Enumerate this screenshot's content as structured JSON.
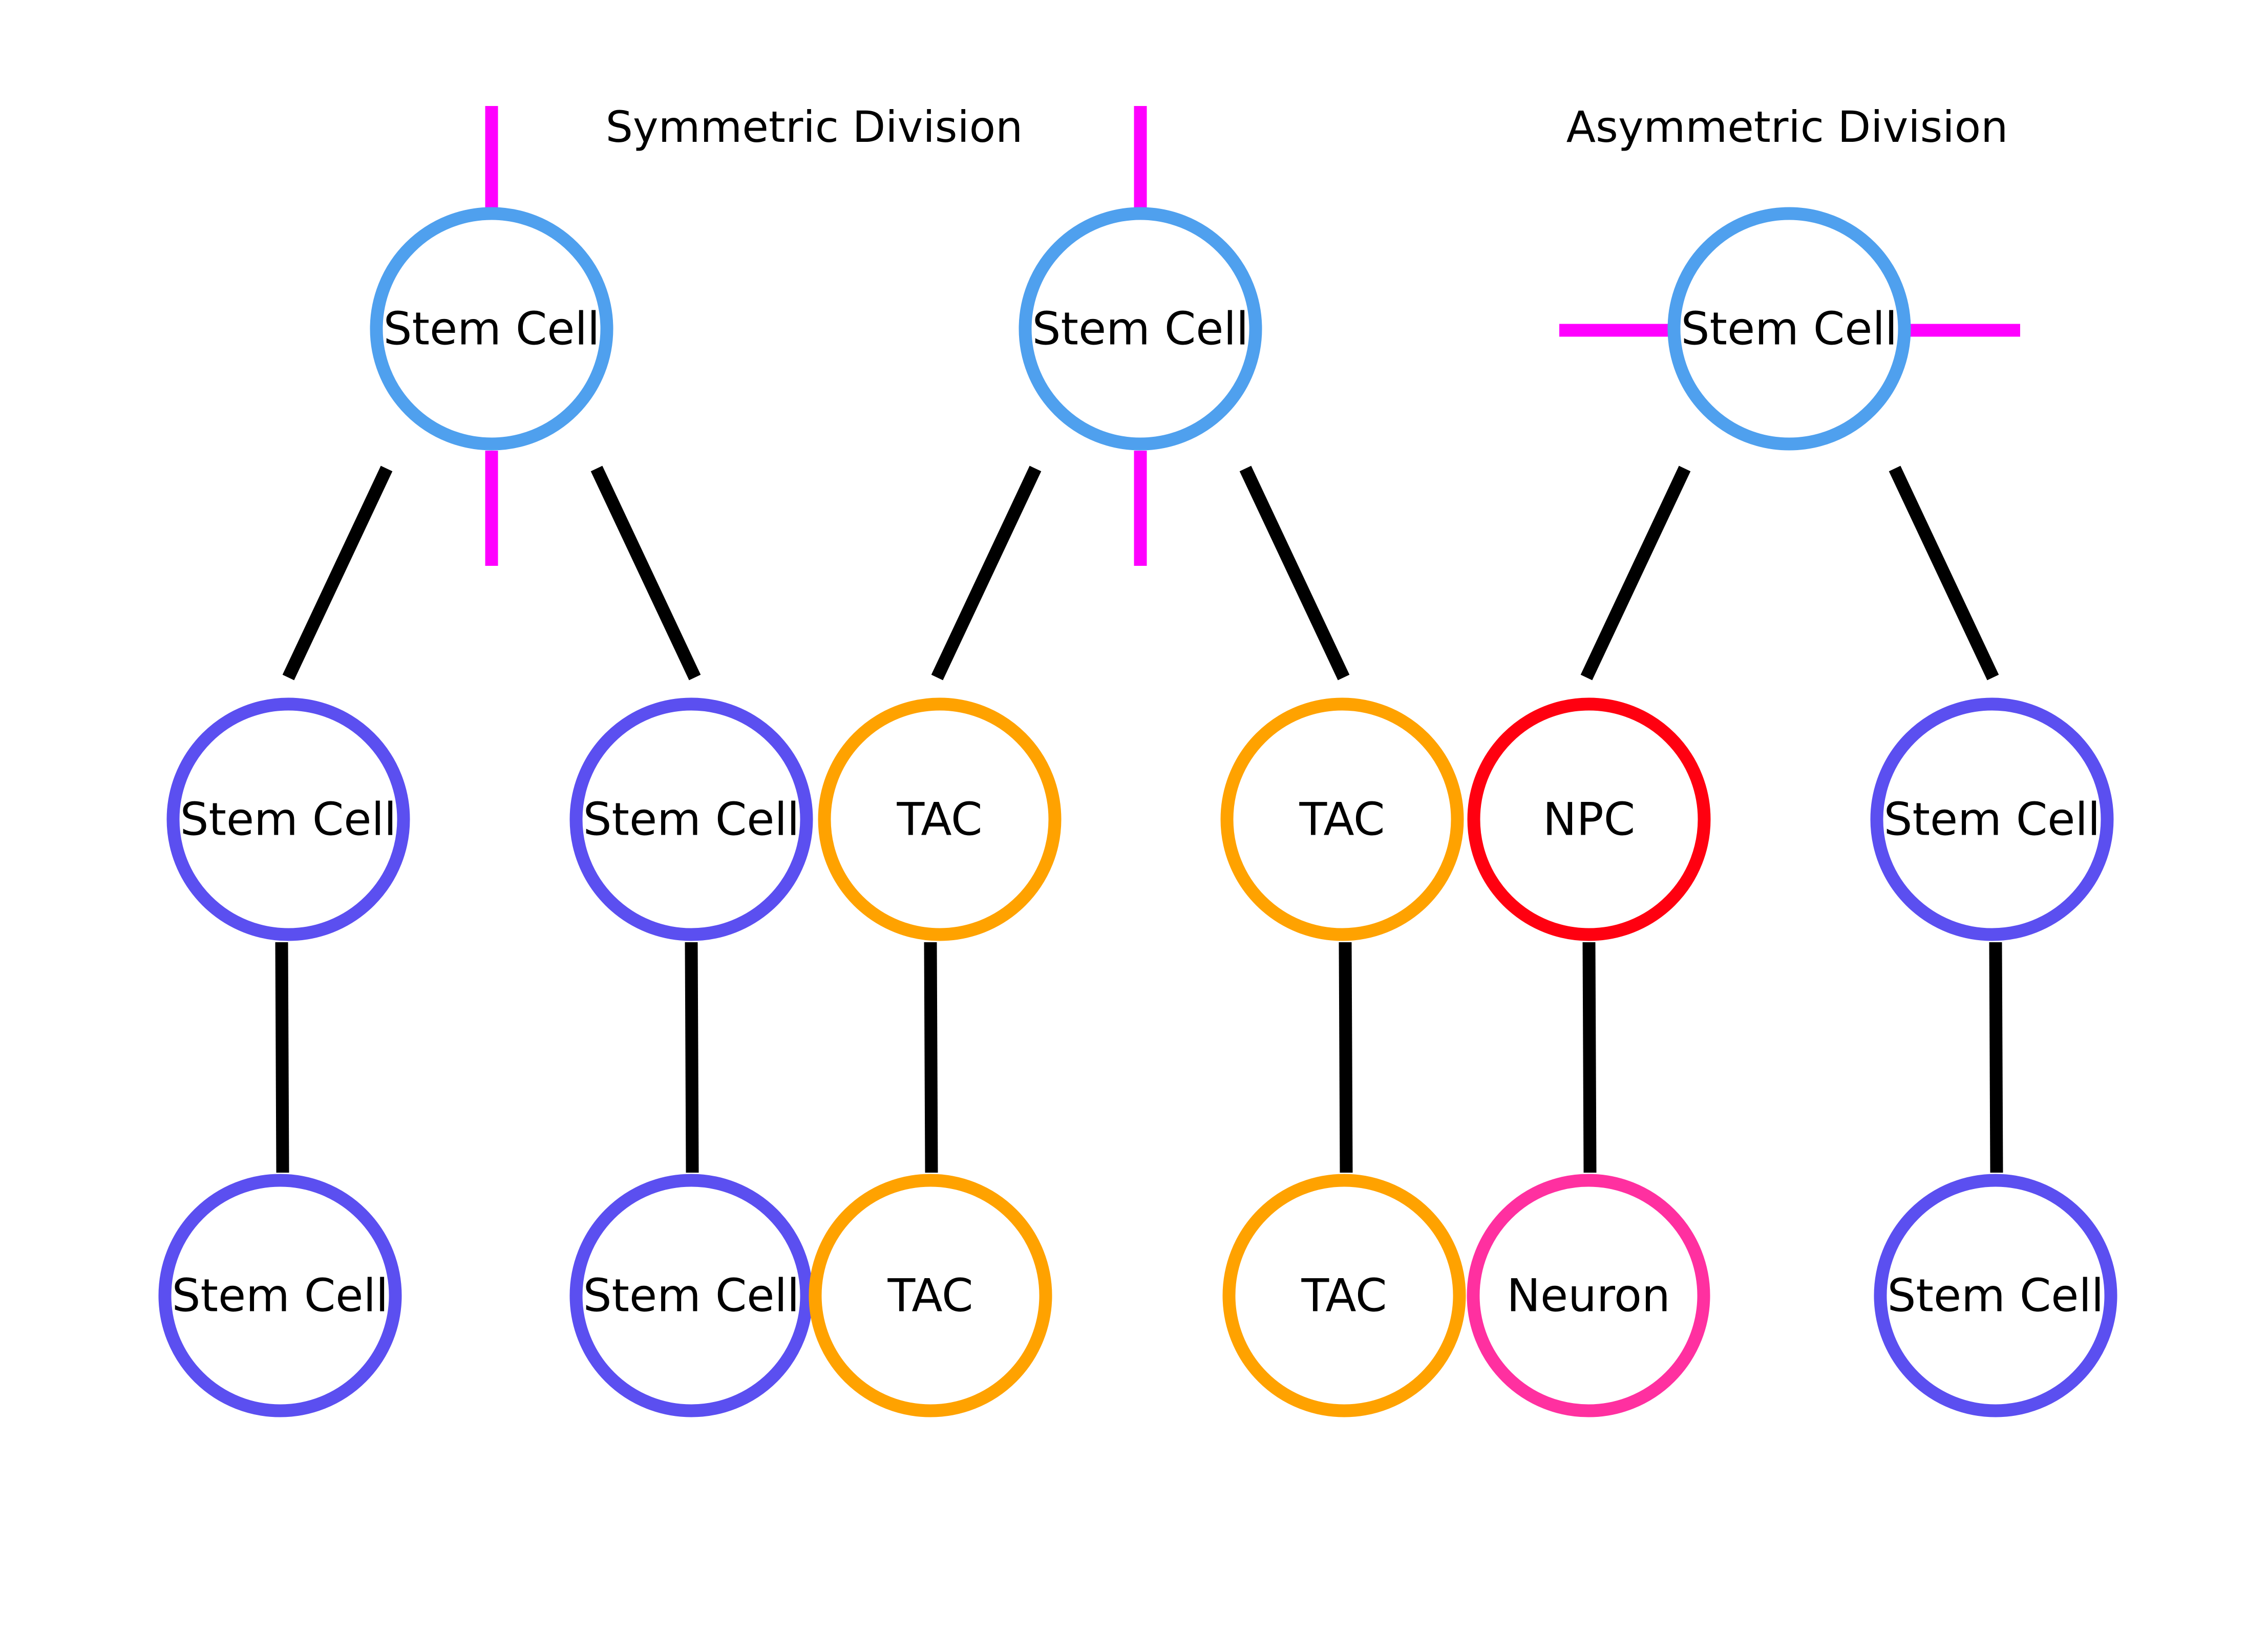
{
  "headings": {
    "symmetric": "Symmetric Division",
    "asymmetric": "Asymmetric Division"
  },
  "colors": {
    "stem_parent": "#4FA0EE",
    "stem_daughter": "#5B4FF0",
    "tac": "#FFA200",
    "npc": "#FF0010",
    "neuron": "#FF30A0",
    "spindle": "#FF00FF",
    "line": "#000000"
  },
  "lineages": [
    {
      "parent": "Stem Cell",
      "spindle": "vertical",
      "children": [
        {
          "label": "Stem Cell",
          "type": "stem_daughter",
          "descendant": {
            "label": "Stem Cell",
            "type": "stem_daughter"
          }
        },
        {
          "label": "Stem Cell",
          "type": "stem_daughter",
          "descendant": {
            "label": "Stem Cell",
            "type": "stem_daughter"
          }
        }
      ]
    },
    {
      "parent": "Stem Cell",
      "spindle": "vertical",
      "children": [
        {
          "label": "TAC",
          "type": "tac",
          "descendant": {
            "label": "TAC",
            "type": "tac"
          }
        },
        {
          "label": "TAC",
          "type": "tac",
          "descendant": {
            "label": "TAC",
            "type": "tac"
          }
        }
      ]
    },
    {
      "parent": "Stem Cell",
      "spindle": "horizontal",
      "children": [
        {
          "label": "NPC",
          "type": "npc",
          "descendant": {
            "label": "Neuron",
            "type": "neuron"
          }
        },
        {
          "label": "Stem Cell",
          "type": "stem_daughter",
          "descendant": {
            "label": "Stem Cell",
            "type": "stem_daughter"
          }
        }
      ]
    }
  ]
}
